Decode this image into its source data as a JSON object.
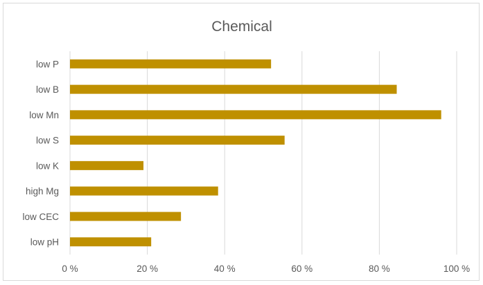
{
  "chart_data": {
    "type": "bar",
    "orientation": "horizontal",
    "title": "Chemical",
    "xlabel": "",
    "ylabel": "",
    "categories": [
      "low P",
      "low B",
      "low Mn",
      "low S",
      "low K",
      "high Mg",
      "low CEC",
      "low pH"
    ],
    "values": [
      52,
      84.5,
      96,
      55.5,
      19,
      38.3,
      28.7,
      21
    ],
    "value_unit": "%",
    "xlim": [
      0,
      100
    ],
    "xticks": [
      "0 %",
      "20 %",
      "40 %",
      "60 %",
      "80 %",
      "100 %"
    ],
    "grid": "vertical",
    "legend": "none",
    "bar_color": "#bf9000",
    "gridline_color": "#d9d9d9"
  }
}
